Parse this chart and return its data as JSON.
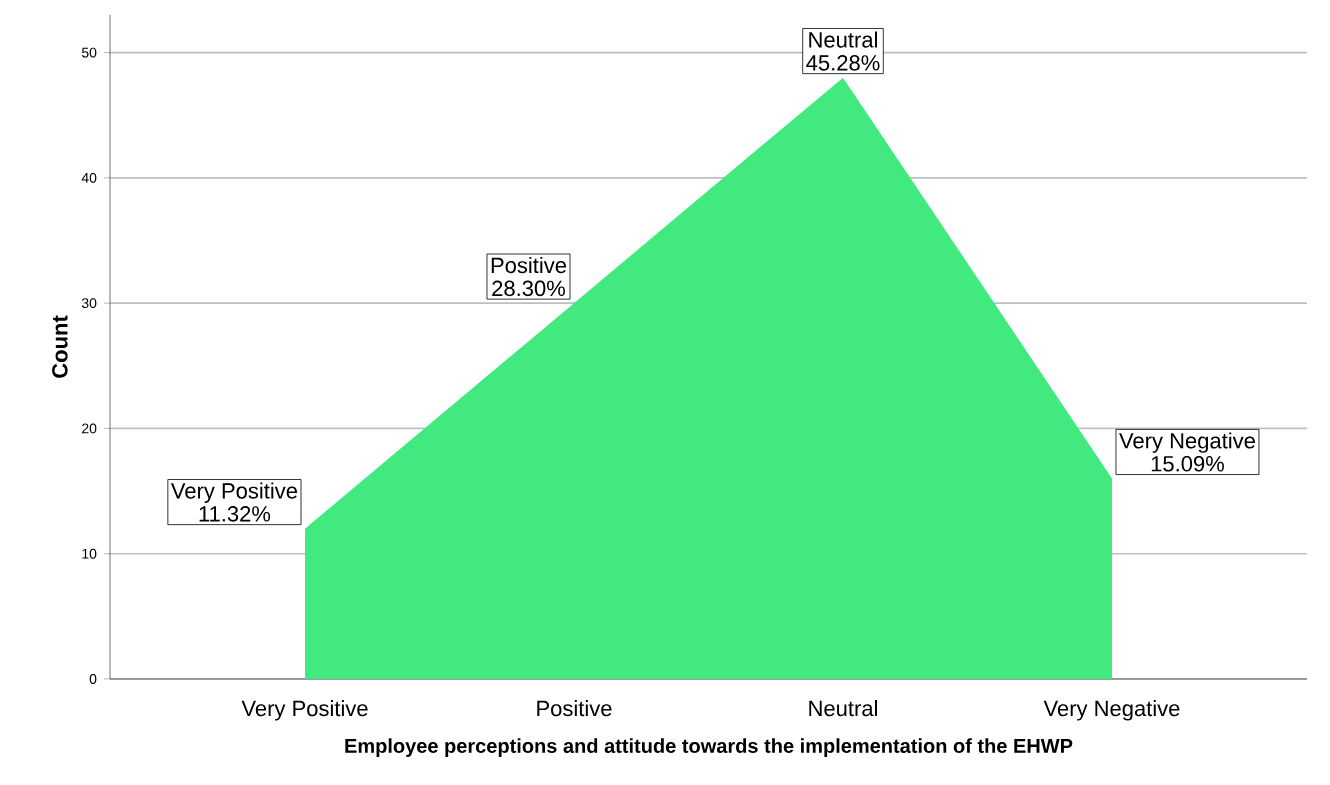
{
  "chart_data": {
    "type": "area",
    "xlabel": "Employee perceptions and attitude towards the implementation of the EHWP",
    "ylabel": "Count",
    "categories": [
      "Very Positive",
      "Positive",
      "Neutral",
      "Very Negative"
    ],
    "values": [
      12,
      30,
      48,
      16
    ],
    "annotations": [
      {
        "text": "11.32%",
        "x": "Very Positive",
        "y": 12
      },
      {
        "text": "28.30%",
        "x": "Positive",
        "y": 30
      },
      {
        "text": "45.28%",
        "x": "Neutral",
        "y": 48
      },
      {
        "text": "15.09%",
        "x": "Very Negative",
        "y": 16
      }
    ],
    "color": "#42e97f",
    "ylim": [
      0,
      53
    ],
    "yticks": [
      0,
      10,
      20,
      30,
      40,
      50
    ],
    "grid": "y"
  }
}
